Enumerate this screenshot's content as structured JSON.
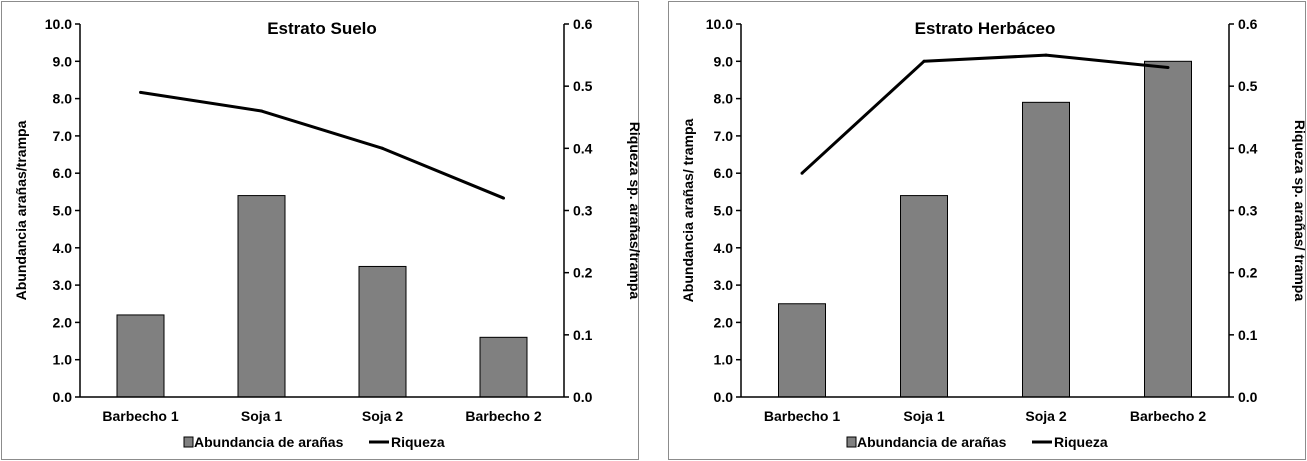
{
  "chart_data": [
    {
      "type": "bar",
      "title": "Estrato Suelo",
      "categories": [
        "Barbecho 1",
        "Soja 1",
        "Soja 2",
        "Barbecho 2"
      ],
      "ylabel": "Abundancia arañas/trampa",
      "y2label": "Riqueza sp. arañas/trampa",
      "ylim": [
        0,
        10
      ],
      "y2lim": [
        0,
        0.6
      ],
      "yticks": [
        "0.0",
        "1.0",
        "2.0",
        "3.0",
        "4.0",
        "5.0",
        "6.0",
        "7.0",
        "8.0",
        "9.0",
        "10.0"
      ],
      "y2ticks": [
        "0.0",
        "0.1",
        "0.2",
        "0.3",
        "0.4",
        "0.5",
        "0.6"
      ],
      "grid": false,
      "legend_position": "bottom",
      "series": [
        {
          "name": "Abundancia de arañas",
          "type": "bar",
          "axis": "left",
          "values": [
            2.2,
            5.4,
            3.5,
            1.6
          ],
          "color": "#808080"
        },
        {
          "name": "Riqueza",
          "type": "line",
          "axis": "right",
          "values": [
            0.49,
            0.46,
            0.4,
            0.32
          ],
          "color": "#000000"
        }
      ]
    },
    {
      "type": "bar",
      "title": "Estrato Herbáceo",
      "categories": [
        "Barbecho 1",
        "Soja 1",
        "Soja 2",
        "Barbecho 2"
      ],
      "ylabel": "Abundancia arañas/ trampa",
      "y2label": "Riqueza sp. arañas/ trampa",
      "ylim": [
        0,
        10
      ],
      "y2lim": [
        0,
        0.6
      ],
      "yticks": [
        "0.0",
        "1.0",
        "2.0",
        "3.0",
        "4.0",
        "5.0",
        "6.0",
        "7.0",
        "8.0",
        "9.0",
        "10.0"
      ],
      "y2ticks": [
        "0.0",
        "0.1",
        "0.2",
        "0.3",
        "0.4",
        "0.5",
        "0.6"
      ],
      "grid": false,
      "legend_position": "bottom",
      "series": [
        {
          "name": "Abundancia de arañas",
          "type": "bar",
          "axis": "left",
          "values": [
            2.5,
            5.4,
            7.9,
            9.0
          ],
          "color": "#808080"
        },
        {
          "name": "Riqueza",
          "type": "line",
          "axis": "right",
          "values": [
            0.36,
            0.54,
            0.55,
            0.53
          ],
          "color": "#000000"
        }
      ]
    }
  ]
}
